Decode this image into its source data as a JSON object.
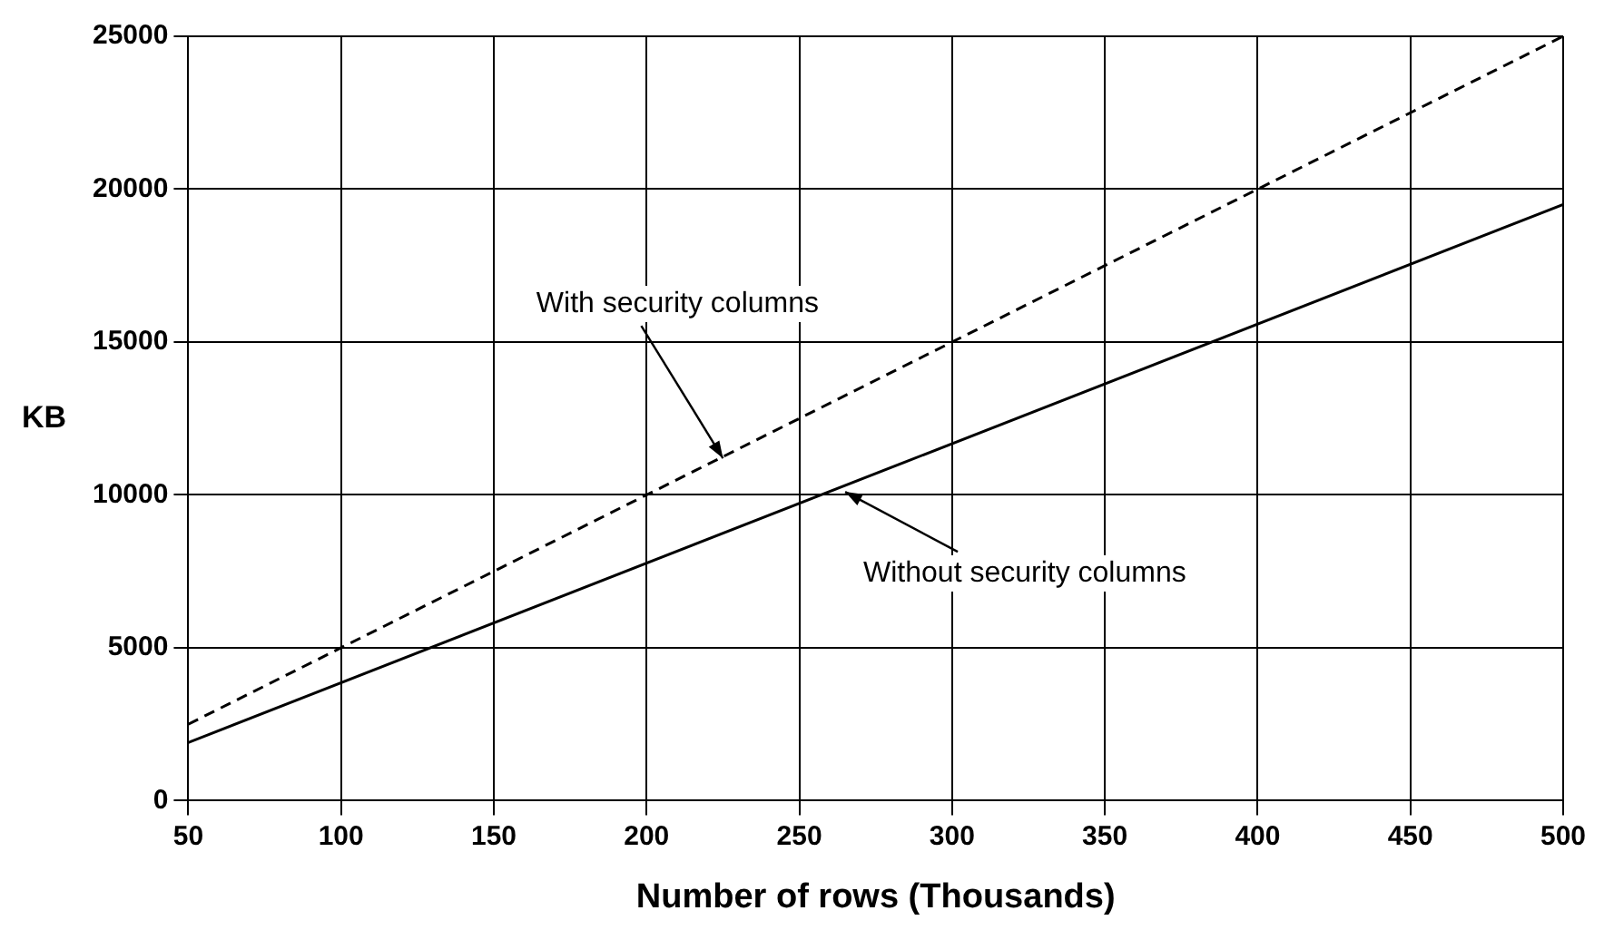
{
  "chart_data": {
    "type": "line",
    "xlabel": "Number of rows (Thousands)",
    "ylabel": "KB",
    "x": [
      50,
      500
    ],
    "series": [
      {
        "values": [
          2500,
          25000
        ],
        "color": "#000000",
        "line_style": "dashed"
      },
      {
        "values": [
          1900,
          19500
        ],
        "color": "#000000",
        "line_style": "solid"
      }
    ],
    "xlim": [
      50,
      500
    ],
    "xticks": [
      50,
      100,
      150,
      200,
      250,
      300,
      350,
      400,
      450,
      500
    ],
    "ylim": [
      0,
      25000
    ],
    "yticks": [
      0,
      5000,
      10000,
      15000,
      20000,
      25000
    ],
    "grid": true,
    "marker": "none",
    "annotations": [
      {
        "text": "With security columns",
        "x": 225,
        "y": 11200
      },
      {
        "text": "Without security columns",
        "x": 265,
        "y": 10100
      }
    ]
  }
}
